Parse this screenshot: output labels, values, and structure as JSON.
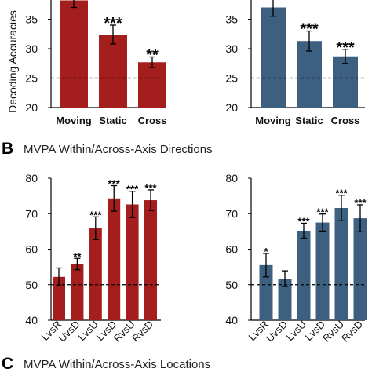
{
  "panels": {
    "B": {
      "letter": "B",
      "title": "MVPA Within/Across-Axis Directions"
    },
    "C": {
      "letter": "C",
      "title": "MVPA Within/Across-Axis Locations"
    }
  },
  "colors": {
    "red": "#a51e1e",
    "blue": "#3d5f80",
    "chance_line": "#000000"
  },
  "chart_data": [
    {
      "id": "A-left",
      "type": "bar",
      "categories": [
        "Moving",
        "Static",
        "Cross"
      ],
      "values": [
        38.2,
        32.4,
        27.7
      ],
      "errors": [
        1.2,
        1.6,
        0.9
      ],
      "significance": [
        "",
        "***",
        "**"
      ],
      "ylabel": "Decoding Accuracies",
      "yticks": [
        20,
        25,
        30,
        35
      ],
      "ylim": [
        20,
        40
      ],
      "chance": 25,
      "color": "red"
    },
    {
      "id": "A-right",
      "type": "bar",
      "categories": [
        "Moving",
        "Static",
        "Cross"
      ],
      "values": [
        37.0,
        31.3,
        28.7
      ],
      "errors": [
        1.5,
        1.7,
        1.2
      ],
      "significance": [
        "",
        "***",
        "***"
      ],
      "ylabel": "",
      "yticks": [
        20,
        25,
        30,
        35
      ],
      "ylim": [
        20,
        40
      ],
      "chance": 25,
      "color": "blue"
    },
    {
      "id": "B-left",
      "type": "bar",
      "categories": [
        "LvsR",
        "UvsD",
        "LvsU",
        "LvsD",
        "RvsU",
        "RvsD"
      ],
      "values": [
        52.2,
        55.8,
        65.9,
        74.3,
        72.6,
        73.8
      ],
      "errors": [
        2.5,
        1.6,
        3.2,
        3.6,
        3.7,
        2.9
      ],
      "significance": [
        "",
        "**",
        "***",
        "***",
        "***",
        "***"
      ],
      "yticks": [
        40,
        50,
        60,
        70,
        80
      ],
      "ylim": [
        40,
        80
      ],
      "chance": 50,
      "color": "red"
    },
    {
      "id": "B-right",
      "type": "bar",
      "categories": [
        "LvsR",
        "UvsD",
        "LvsU",
        "LvsD",
        "RvsU",
        "RvsD"
      ],
      "values": [
        55.5,
        51.7,
        65.2,
        67.5,
        71.6,
        68.7
      ],
      "errors": [
        3.3,
        2.2,
        2.1,
        2.4,
        3.6,
        3.8
      ],
      "significance": [
        "*",
        "",
        "***",
        "***",
        "***",
        "***"
      ],
      "yticks": [
        40,
        50,
        60,
        70,
        80
      ],
      "ylim": [
        40,
        80
      ],
      "chance": 50,
      "color": "blue"
    }
  ]
}
